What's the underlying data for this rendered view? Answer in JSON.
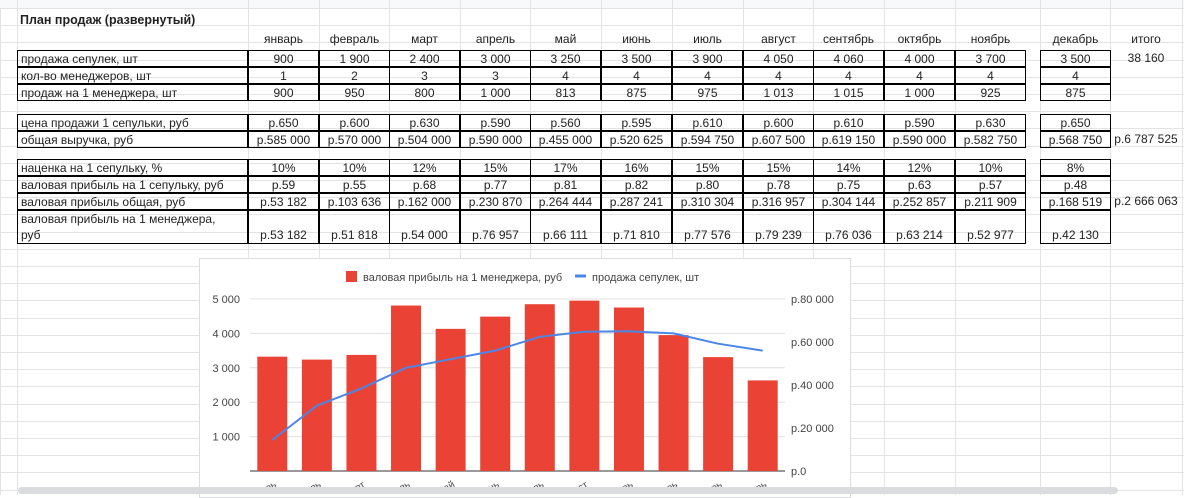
{
  "sheet": {
    "title": "План продаж (развернутый)",
    "months": [
      "январь",
      "февраль",
      "март",
      "апрель",
      "май",
      "июнь",
      "июль",
      "август",
      "сентябрь",
      "октябрь",
      "ноябрь",
      "декабрь"
    ],
    "total_label": "итого",
    "groups": [
      {
        "rows": [
          {
            "label": "продажа сепулек, шт",
            "values": [
              "900",
              "1 900",
              "2 400",
              "3 000",
              "3 250",
              "3 500",
              "3 900",
              "4 050",
              "4 060",
              "4 000",
              "3 700",
              "3 500"
            ],
            "total": "38 160"
          },
          {
            "label": "кол-во менеджеров, шт",
            "values": [
              "1",
              "2",
              "3",
              "3",
              "4",
              "4",
              "4",
              "4",
              "4",
              "4",
              "4",
              "4"
            ],
            "total": ""
          },
          {
            "label": "продаж на 1 менеджера, шт",
            "values": [
              "900",
              "950",
              "800",
              "1 000",
              "813",
              "875",
              "975",
              "1 013",
              "1 015",
              "1 000",
              "925",
              "875"
            ],
            "total": ""
          }
        ]
      },
      {
        "rows": [
          {
            "label": "цена продажи 1 сепульки, руб",
            "values": [
              "р.650",
              "р.600",
              "р.630",
              "р.590",
              "р.560",
              "р.595",
              "р.610",
              "р.600",
              "р.610",
              "р.590",
              "р.630",
              "р.650"
            ],
            "total": ""
          },
          {
            "label": "общая выручка, руб",
            "values": [
              "р.585 000",
              "р.570 000",
              "р.504 000",
              "р.590 000",
              "р.455 000",
              "р.520 625",
              "р.594 750",
              "р.607 500",
              "р.619 150",
              "р.590 000",
              "р.582 750",
              "р.568 750"
            ],
            "total": "р.6 787 525"
          }
        ]
      },
      {
        "rows": [
          {
            "label": "наценка на 1 сепульку, %",
            "values": [
              "10%",
              "10%",
              "12%",
              "15%",
              "17%",
              "16%",
              "15%",
              "15%",
              "14%",
              "12%",
              "10%",
              "8%"
            ],
            "total": ""
          },
          {
            "label": "валовая прибыль на 1 сепульку, руб",
            "values": [
              "р.59",
              "р.55",
              "р.68",
              "р.77",
              "р.81",
              "р.82",
              "р.80",
              "р.78",
              "р.75",
              "р.63",
              "р.57",
              "р.48"
            ],
            "total": ""
          },
          {
            "label": "валовая прибыль общая, руб",
            "values": [
              "р.53 182",
              "р.103 636",
              "р.162 000",
              "р.230 870",
              "р.264 444",
              "р.287 241",
              "р.310 304",
              "р.316 957",
              "р.304 144",
              "р.252 857",
              "р.211 909",
              "р.168 519"
            ],
            "total": "р.2 666 063"
          },
          {
            "label": "валовая прибыль на 1 менеджера,",
            "label2": "руб",
            "values": [
              "р.53 182",
              "р.51 818",
              "р.54 000",
              "р.76 957",
              "р.66 111",
              "р.71 810",
              "р.77 576",
              "р.79 239",
              "р.76 036",
              "р.63 214",
              "р.52 977",
              "р.42 130"
            ],
            "total": ""
          }
        ]
      }
    ]
  },
  "chart_data": {
    "type": "bar",
    "categories": [
      "январь",
      "февраль",
      "март",
      "апрель",
      "май",
      "июнь",
      "июль",
      "август",
      "сентябрь",
      "октябрь",
      "ноябрь",
      "декабрь"
    ],
    "series": [
      {
        "name": "валовая прибыль на 1 менеджера, руб",
        "kind": "bar",
        "axis": "right",
        "color": "#ea4335",
        "values": [
          53182,
          51818,
          54000,
          76957,
          66111,
          71810,
          77576,
          79239,
          76036,
          63214,
          52977,
          42130
        ]
      },
      {
        "name": "продажа сепулек, шт",
        "kind": "line",
        "axis": "left",
        "color": "#4a86e8",
        "values": [
          900,
          1900,
          2400,
          3000,
          3250,
          3500,
          3900,
          4050,
          4060,
          4000,
          3700,
          3500
        ]
      }
    ],
    "left_axis": {
      "ticks": [
        "1 000",
        "2 000",
        "3 000",
        "4 000",
        "5 000"
      ],
      "tick_values": [
        1000,
        2000,
        3000,
        4000,
        5000
      ],
      "range": [
        0,
        5000
      ]
    },
    "right_axis": {
      "ticks": [
        "р.0",
        "р.20 000",
        "р.40 000",
        "р.60 000",
        "р.80 000"
      ],
      "tick_values": [
        0,
        20000,
        40000,
        60000,
        80000
      ],
      "range": [
        0,
        80000
      ]
    },
    "legend_position": "top",
    "x_tick_fragments": [
      "рь",
      "ль",
      "рт",
      "ль",
      "ай",
      "нь",
      "ль",
      "ст",
      "рь",
      "рь",
      "рь",
      "рь"
    ]
  }
}
